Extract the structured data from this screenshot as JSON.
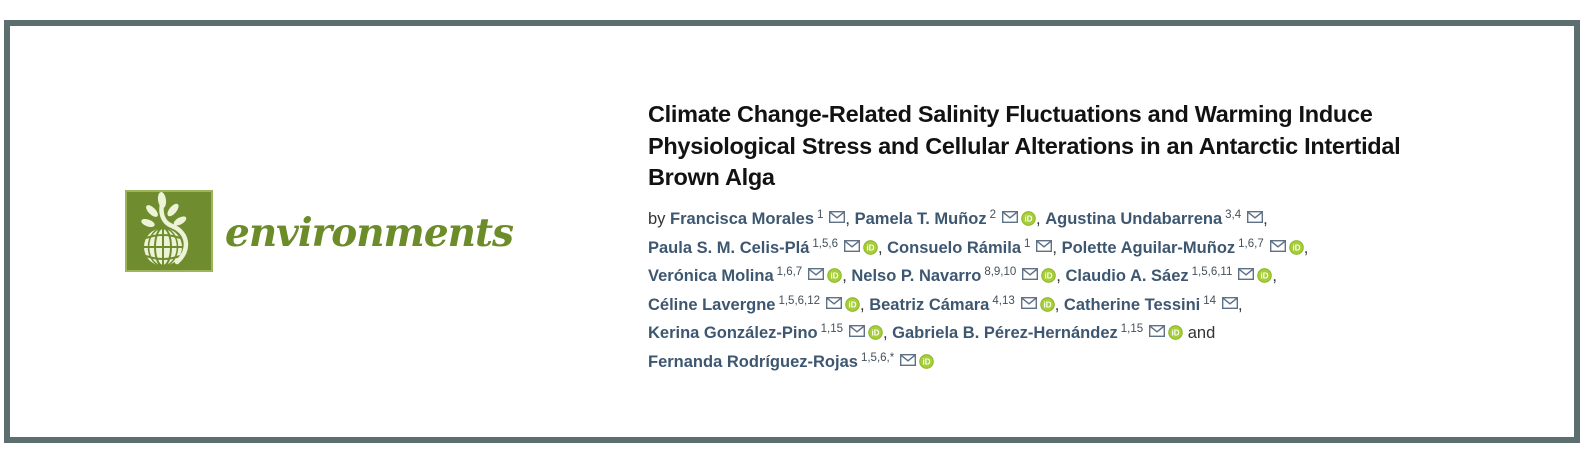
{
  "journal": {
    "name": "environments",
    "logo_icon": "globe-with-sprout"
  },
  "article": {
    "title": "Climate Change-Related Salinity Fluctuations and Warming Induce Physiological Stress and Cellular Alterations in an Antarctic Intertidal Brown Alga",
    "title_lines": [
      "Climate Change-Related Salinity Fluctuations and Warming Induce",
      "Physiological Stress and Cellular Alterations in an Antarctic Intertidal",
      "Brown Alga"
    ]
  },
  "byline": {
    "prefix": "by ",
    "authors": [
      {
        "name": "Francisca Morales",
        "sup": "1",
        "email": true,
        "orcid": false,
        "sep": ", ",
        "br": false
      },
      {
        "name": "Pamela T. Muñoz",
        "sup": "2",
        "email": true,
        "orcid": true,
        "sep": ", ",
        "br": false
      },
      {
        "name": "Agustina Undabarrena",
        "sup": "3,4",
        "email": true,
        "orcid": false,
        "sep": ",",
        "br": true
      },
      {
        "name": "Paula S. M. Celis-Plá",
        "sup": "1,5,6",
        "email": true,
        "orcid": true,
        "sep": ", ",
        "br": false
      },
      {
        "name": "Consuelo Rámila",
        "sup": "1",
        "email": true,
        "orcid": false,
        "sep": ", ",
        "br": false
      },
      {
        "name": "Polette Aguilar-Muñoz",
        "sup": "1,6,7",
        "email": true,
        "orcid": true,
        "sep": ",",
        "br": true
      },
      {
        "name": "Verónica Molina",
        "sup": "1,6,7",
        "email": true,
        "orcid": true,
        "sep": ", ",
        "br": false
      },
      {
        "name": "Nelso P. Navarro",
        "sup": "8,9,10",
        "email": true,
        "orcid": true,
        "sep": ", ",
        "br": false
      },
      {
        "name": "Claudio A. Sáez",
        "sup": "1,5,6,11",
        "email": true,
        "orcid": true,
        "sep": ",",
        "br": true
      },
      {
        "name": "Céline Lavergne",
        "sup": "1,5,6,12",
        "email": true,
        "orcid": true,
        "sep": ", ",
        "br": false
      },
      {
        "name": "Beatriz Cámara",
        "sup": "4,13",
        "email": true,
        "orcid": true,
        "sep": ", ",
        "br": false
      },
      {
        "name": "Catherine Tessini",
        "sup": "14",
        "email": true,
        "orcid": false,
        "sep": ",",
        "br": true
      },
      {
        "name": "Kerina González-Pino",
        "sup": "1,15",
        "email": true,
        "orcid": true,
        "sep": ", ",
        "br": false
      },
      {
        "name": "Gabriela B. Pérez-Hernández",
        "sup": "1,15",
        "email": true,
        "orcid": true,
        "sep": " and",
        "br": true
      },
      {
        "name": "Fernanda Rodríguez-Rojas",
        "sup": "1,5,6,*",
        "email": true,
        "orcid": true,
        "sep": "",
        "br": false
      }
    ]
  },
  "icons": {
    "email_name": "email-envelope-icon",
    "orcid_name": "orcid-icon",
    "orcid_label": "iD"
  },
  "colors": {
    "frame_border": "#5c6e6e",
    "logo_green": "#6f8d2f",
    "logo_light": "#edf3d6",
    "journal_text_green": "#6b8c29",
    "title_text": "#121212",
    "author_link": "#3e5771",
    "orcid_green": "#a6ce39",
    "email_stroke": "#5f7186"
  }
}
